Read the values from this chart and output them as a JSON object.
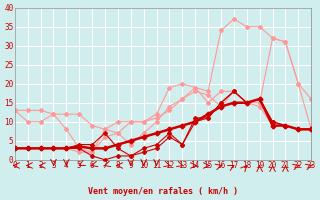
{
  "background_color": "#d0eeee",
  "grid_color": "#ffffff",
  "line_color_dark": "#cc0000",
  "line_color_light": "#ff9999",
  "xlabel": "Vent moyen/en rafales ( km/h )",
  "ylabel": "",
  "xlim": [
    0,
    23
  ],
  "ylim": [
    0,
    40
  ],
  "xticks": [
    0,
    1,
    2,
    3,
    4,
    5,
    6,
    7,
    8,
    9,
    10,
    11,
    12,
    13,
    14,
    15,
    16,
    17,
    18,
    19,
    20,
    21,
    22,
    23
  ],
  "yticks": [
    0,
    5,
    10,
    15,
    20,
    25,
    30,
    35,
    40
  ],
  "lines_dark": [
    [
      0,
      1,
      2,
      3,
      4,
      5,
      6,
      7,
      8,
      9,
      10,
      11,
      12,
      13,
      14,
      15,
      16,
      17,
      18,
      19,
      20,
      21,
      22,
      23
    ],
    [
      3,
      3,
      3,
      3,
      3,
      3,
      1,
      0,
      1,
      1,
      3,
      4,
      7,
      4,
      10,
      11,
      15,
      18,
      15,
      16,
      10,
      9,
      8,
      8
    ]
  ],
  "lines_dark2": [
    [
      0,
      1,
      2,
      3,
      4,
      5,
      6,
      7,
      8,
      9,
      10,
      11,
      12,
      13,
      14,
      15,
      16,
      17,
      18,
      19,
      20,
      21,
      22,
      23
    ],
    [
      3,
      3,
      3,
      3,
      3,
      4,
      4,
      7,
      3,
      1,
      2,
      3,
      6,
      4,
      11,
      11,
      15,
      18,
      15,
      16,
      10,
      9,
      8,
      8
    ]
  ],
  "line_thick": [
    [
      0,
      1,
      2,
      3,
      4,
      5,
      6,
      7,
      8,
      9,
      10,
      11,
      12,
      13,
      14,
      15,
      16,
      17,
      18,
      19,
      20,
      21,
      22,
      23
    ],
    [
      3,
      3,
      3,
      3,
      3,
      3.5,
      3,
      3,
      4,
      5,
      6,
      7,
      8,
      9,
      10,
      12,
      14,
      15,
      15,
      16,
      9,
      9,
      8,
      8
    ]
  ],
  "lines_light": [
    {
      "x": [
        0,
        1,
        2,
        3,
        4,
        5,
        6,
        7,
        8,
        9,
        10,
        11,
        12,
        13,
        14,
        15,
        16,
        17,
        18,
        19,
        20,
        21,
        22,
        23
      ],
      "y": [
        13,
        13,
        13,
        12,
        12,
        12,
        9,
        8,
        10,
        10,
        10,
        12,
        19,
        20,
        19,
        18,
        34,
        37,
        35,
        35,
        32,
        31,
        20,
        16
      ]
    },
    {
      "x": [
        0,
        1,
        2,
        3,
        4,
        5,
        6,
        7,
        8,
        9,
        10,
        11,
        12,
        13,
        14,
        15,
        16,
        17,
        18,
        19,
        20,
        21,
        22,
        23
      ],
      "y": [
        13,
        10,
        10,
        12,
        8,
        3,
        2,
        8,
        7,
        10,
        10,
        11,
        13,
        16,
        19,
        15,
        18,
        18,
        15,
        15,
        32,
        31,
        20,
        8
      ]
    },
    {
      "x": [
        0,
        1,
        2,
        3,
        4,
        5,
        6,
        7,
        8,
        9,
        10,
        11,
        12,
        13,
        14,
        15,
        16,
        17,
        18,
        19,
        20,
        21,
        22,
        23
      ],
      "y": [
        3,
        3,
        3,
        3,
        3,
        2,
        2,
        6,
        7,
        4,
        7,
        10,
        14,
        16,
        18,
        17,
        14,
        18,
        15,
        14,
        9,
        9,
        8,
        8
      ]
    }
  ],
  "wind_arrows": {
    "x": [
      0,
      1,
      2,
      3,
      4,
      5,
      6,
      7,
      8,
      9,
      10,
      11,
      12,
      13,
      14,
      15,
      16,
      17,
      18,
      19,
      20,
      21,
      22,
      23
    ],
    "angles": [
      270,
      270,
      270,
      180,
      180,
      210,
      225,
      225,
      270,
      180,
      180,
      180,
      135,
      135,
      90,
      90,
      45,
      30,
      15,
      0,
      0,
      0,
      45,
      45
    ]
  }
}
